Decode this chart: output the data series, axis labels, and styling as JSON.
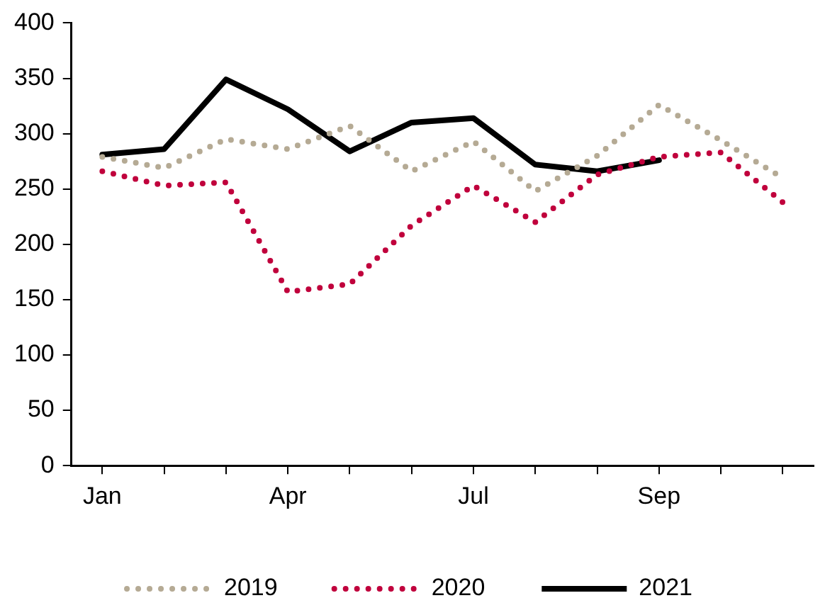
{
  "chart_data": {
    "type": "line",
    "categories": [
      "Jan",
      null,
      null,
      "Apr",
      null,
      null,
      "Jul",
      null,
      null,
      "Sep",
      null,
      null
    ],
    "series": [
      {
        "name": "2019",
        "color": "#b5aa94",
        "line_style": "dotted",
        "values": [
          279,
          269,
          295,
          286,
          307,
          266,
          293,
          248,
          280,
          326,
          294,
          260
        ]
      },
      {
        "name": "2020",
        "color": "#c0003c",
        "line_style": "dotted",
        "values": [
          266,
          253,
          256,
          157,
          164,
          217,
          253,
          220,
          263,
          279,
          283,
          238
        ]
      },
      {
        "name": "2021",
        "color": "#000000",
        "line_style": "solid",
        "values": [
          281,
          286,
          349,
          322,
          284,
          310,
          314,
          272,
          266,
          276,
          null,
          null
        ]
      }
    ],
    "ylim": [
      0,
      400
    ],
    "yticks": [
      0,
      50,
      100,
      150,
      200,
      250,
      300,
      350,
      400
    ],
    "grid": false,
    "legend": "bottom",
    "marker": "none"
  }
}
